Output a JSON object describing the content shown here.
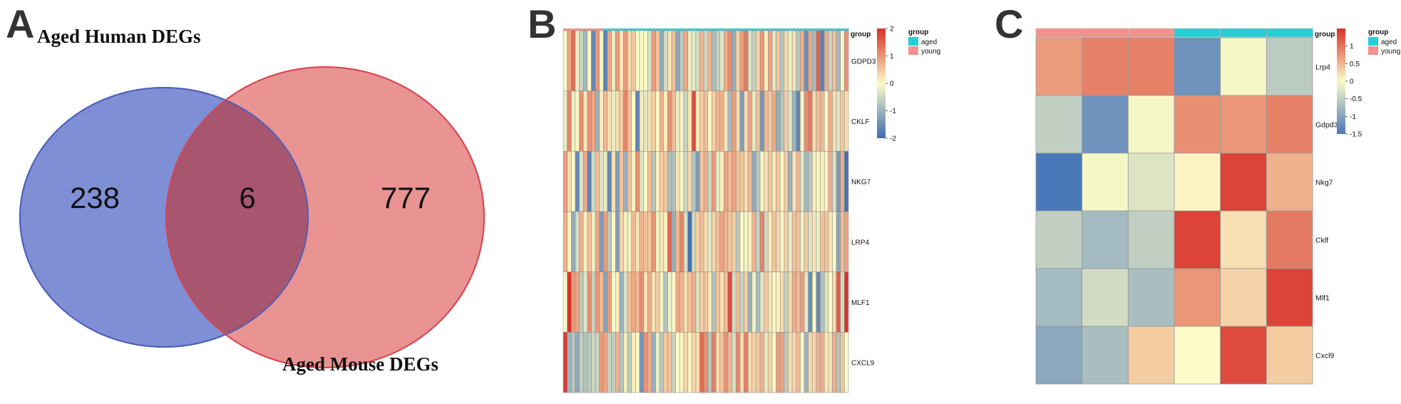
{
  "panels": {
    "a": "A",
    "b": "B",
    "c": "C"
  },
  "chart_data": [
    {
      "type": "venn",
      "title": "",
      "sets": [
        {
          "name": "Aged Human DEGs",
          "only": 238,
          "color": "#7f8fd6"
        },
        {
          "name": "Aged Mouse DEGs",
          "only": 777,
          "color": "#e47b7b"
        }
      ],
      "intersection": 6,
      "overlap_color": "#a8566f"
    },
    {
      "type": "heatmap",
      "rows": [
        "GDPD3",
        "CKLF",
        "NKG7",
        "LRP4",
        "MLF1",
        "CXCL9"
      ],
      "group_annotation": {
        "label": "group",
        "young_columns": 10,
        "aged_columns": 61
      },
      "groups": [
        {
          "name": "aged",
          "color": "#22d0d6"
        },
        {
          "name": "young",
          "color": "#f5908a"
        }
      ],
      "color_scale": {
        "min": -2,
        "max": 2,
        "ticks": [
          2,
          1,
          0,
          -1,
          -2
        ],
        "colors": [
          "#3f6cb0",
          "#fcfbc7",
          "#d73027"
        ]
      },
      "values": [
        [
          -0.05,
          0.85,
          1.36,
          -0.18,
          -0.52,
          -0.95,
          0.04,
          -1.59,
          0.96,
          -0.08,
          -1.68,
          0.84,
          -0.23,
          0.95,
          0.21,
          0.97,
          0.33,
          0.53,
          -0.01,
          0.01,
          0.02,
          -0.36,
          0.91,
          0.56,
          -1.12,
          -0.44,
          0.22,
          0.59,
          -1.19,
          -0.7,
          0.82,
          -0.22,
          -0.24,
          -0.43,
          0.7,
          -0.46,
          0.69,
          -0.85,
          -0.58,
          -0.31,
          0.74,
          1.08,
          -1.1,
          0.38,
          0.91,
          1.25,
          -0.32,
          -0.62,
          0.36,
          0.97,
          0.12,
          0.89,
          -0.3,
          0.52,
          -0.73,
          0.34,
          -0.14,
          0.25,
          -0.74,
          0.73,
          -1.51,
          0.84,
          -0.88,
          1.51,
          -1.7,
          0.74,
          -0.53,
          0.62,
          -0.92,
          -0.1,
          1.02
        ],
        [
          -0.24,
          1.18,
          -0.12,
          0.02,
          1.06,
          0.19,
          1.05,
          0.82,
          -1.04,
          0.16,
          0.66,
          0.25,
          -0.2,
          0.27,
          0.47,
          1.17,
          0.57,
          0.03,
          -1.65,
          0.17,
          -0.3,
          0.24,
          0.42,
          0.04,
          0.69,
          0.11,
          1.03,
          0.61,
          -0.24,
          0.1,
          -0.55,
          0.22,
          1.7,
          0.14,
          0.43,
          0.59,
          0.03,
          0.43,
          0.69,
          0.74,
          0.23,
          -0.88,
          0.92,
          0.33,
          -1.32,
          0.31,
          0.83,
          -0.25,
          0.58,
          -1.38,
          0.65,
          0.48,
          0.81,
          -1.11,
          -0.75,
          0.44,
          -0.29,
          -1.0,
          -1.63,
          0.07,
          1.06,
          1.27,
          0.32,
          0.6,
          0.67,
          0.03,
          0.78,
          0.28,
          -0.29,
          0.54,
          0.28
        ],
        [
          0.93,
          0.3,
          -0.04,
          -1.58,
          -0.34,
          0.82,
          -1.67,
          -0.5,
          0.6,
          -0.35,
          -0.19,
          -1.61,
          0.27,
          -1.32,
          0.52,
          -1.05,
          0.56,
          0.07,
          1.09,
          -0.3,
          -0.01,
          0.6,
          -0.74,
          0.12,
          0.42,
          0.53,
          -0.83,
          -0.8,
          0.24,
          0.03,
          -0.49,
          0.38,
          -0.74,
          -1.32,
          0.53,
          0.75,
          -0.52,
          0.98,
          -0.22,
          0.11,
          0.84,
          0.62,
          0.89,
          0.55,
          0.5,
          0.28,
          0.65,
          -1.13,
          -0.72,
          -0.05,
          0.27,
          0.52,
          0.16,
          0.52,
          0.04,
          0.47,
          -1.03,
          0.25,
          0.69,
          -0.29,
          -0.91,
          -0.73,
          0.13,
          0.07,
          0.1,
          0.09,
          0.76,
          -0.36,
          -1.37,
          0.81,
          -1.93
        ],
        [
          0.77,
          0.07,
          -1.11,
          -0.43,
          0.74,
          0.1,
          0.58,
          -0.15,
          0.83,
          -1.34,
          0.94,
          -0.69,
          0.06,
          -1.26,
          0.36,
          0.11,
          -0.14,
          0.67,
          0.24,
          0.67,
          0.57,
          0.53,
          1.02,
          -0.15,
          0.23,
          0.11,
          1.45,
          -1.07,
          0.65,
          1.15,
          -0.4,
          -1.92,
          -0.49,
          0.4,
          0.59,
          0.27,
          -0.28,
          0.36,
          0.58,
          0.87,
          0.7,
          0.52,
          0.46,
          -0.68,
          0.04,
          -0.07,
          0.12,
          0.74,
          -0.58,
          1.17,
          -0.48,
          0.15,
          0.53,
          0.38,
          -0.05,
          0.46,
          -0.21,
          0.56,
          0.59,
          -0.16,
          0.47,
          -0.33,
          0.21,
          -0.19,
          0.55,
          0.55,
          0.22,
          0.04,
          -1.17,
          0.64,
          0.84
        ],
        [
          -0.04,
          1.97,
          0.96,
          0.84,
          -0.68,
          -0.27,
          1.08,
          -0.59,
          0.99,
          0.64,
          -1.22,
          0.95,
          -0.01,
          0.1,
          -1.03,
          -0.37,
          0.58,
          0.82,
          0.66,
          1.07,
          0.24,
          0.76,
          0.21,
          0.48,
          -0.1,
          -0.78,
          -0.17,
          -0.02,
          0.83,
          0.69,
          0.26,
          0.59,
          0.75,
          -0.35,
          0.44,
          0.53,
          0.2,
          -0.77,
          0.55,
          0.27,
          0.61,
          1.72,
          -0.48,
          0.6,
          -0.55,
          0.44,
          -1.02,
          -0.12,
          -0.87,
          -0.27,
          0.49,
          0.22,
          -0.05,
          0.1,
          0.32,
          -0.58,
          0.31,
          0.78,
          0.65,
          0.92,
          -0.29,
          -1.54,
          0.06,
          -1.6,
          -0.8,
          -0.34,
          0.02,
          0.34,
          1.55,
          -0.45,
          1.92
        ],
        [
          1.88,
          -1.01,
          -0.73,
          -1.12,
          -0.62,
          -0.77,
          -0.68,
          -0.49,
          -0.55,
          0.97,
          0.83,
          -0.58,
          -0.63,
          0.7,
          -0.76,
          0.14,
          -0.64,
          0.16,
          0.01,
          -1.42,
          1.02,
          0.76,
          -1.04,
          -0.18,
          -0.71,
          0.51,
          0.56,
          -0.53,
          0.01,
          0.03,
          0.35,
          0.1,
          0.35,
          0.29,
          1.4,
          1.07,
          -0.76,
          1.21,
          0.33,
          0.55,
          1.01,
          0.64,
          -0.4,
          1.13,
          0.33,
          1.23,
          0.33,
          0.42,
          0.47,
          0.7,
          -0.25,
          0.35,
          0.05,
          0.91,
          0.86,
          -0.66,
          0.26,
          0.34,
          0.65,
          0.03,
          -0.96,
          0.34,
          0.36,
          0.73,
          0.76,
          0.18,
          0.26,
          0.77,
          -0.76,
          0.55,
          0.01
        ]
      ]
    },
    {
      "type": "heatmap",
      "rows": [
        "Lrp4",
        "Gdpd3",
        "Nkg7",
        "Cklf",
        "Mlf1",
        "Cxcl9"
      ],
      "group_annotation": {
        "label": "group",
        "young_columns": 3,
        "aged_columns": 3
      },
      "groups": [
        {
          "name": "aged",
          "color": "#22d0d6"
        },
        {
          "name": "young",
          "color": "#f5908a"
        }
      ],
      "color_scale": {
        "min": -1.5,
        "max": 1.5,
        "ticks": [
          1,
          0.5,
          0,
          -0.5,
          -1,
          -1.5
        ],
        "colors": [
          "#4a78b8",
          "#fcfbc7",
          "#d73027"
        ]
      },
      "values": [
        [
          0.7,
          0.9,
          0.9,
          -1.2,
          -0.05,
          -0.55
        ],
        [
          -0.5,
          -1.2,
          -0.05,
          0.8,
          0.75,
          0.9
        ],
        [
          -1.5,
          -0.05,
          -0.25,
          0.05,
          1.35,
          0.55
        ],
        [
          -0.5,
          -0.75,
          -0.5,
          1.35,
          0.2,
          0.95
        ],
        [
          -0.75,
          -0.35,
          -0.7,
          0.75,
          0.3,
          1.35
        ],
        [
          -0.95,
          -0.7,
          0.35,
          0.0,
          1.3,
          0.35
        ]
      ]
    }
  ]
}
